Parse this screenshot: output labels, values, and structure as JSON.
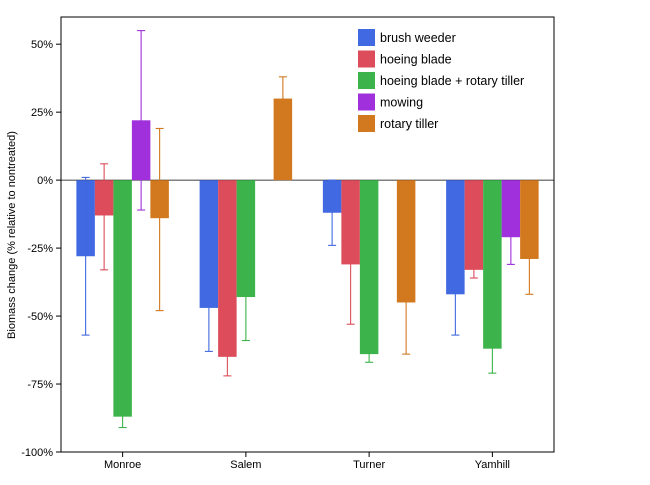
{
  "chart_data": {
    "type": "bar",
    "title": "",
    "xlabel": "",
    "ylabel": "Biomass change (% relative to nontreated)",
    "ylim": [
      -100,
      60
    ],
    "yticks": [
      -100,
      -75,
      -50,
      -25,
      0,
      25,
      50
    ],
    "ytick_labels": [
      "-100%",
      "-75%",
      "-50%",
      "-25%",
      "0%",
      "25%",
      "50%"
    ],
    "categories": [
      "Monroe",
      "Salem",
      "Turner",
      "Yamhill"
    ],
    "grid": false,
    "legend_position": "top-right",
    "series": [
      {
        "name": "brush weeder",
        "color": "#4169e1",
        "values": [
          -28,
          -47,
          -12,
          -42
        ],
        "err_low": [
          -57,
          -63,
          -24,
          -57
        ],
        "err_high": [
          1,
          -32,
          0,
          -28
        ]
      },
      {
        "name": "hoeing blade",
        "color": "#dc4c5a",
        "values": [
          -13,
          -65,
          -31,
          -33
        ],
        "err_low": [
          -33,
          -72,
          -53,
          -36
        ],
        "err_high": [
          6,
          -58,
          -10,
          -32
        ]
      },
      {
        "name": "hoeing blade + rotary tiller",
        "color": "#3cb44b",
        "values": [
          -87,
          -43,
          -64,
          -62
        ],
        "err_low": [
          -91,
          -59,
          -67,
          -71
        ],
        "err_high": [
          -84,
          -28,
          -61,
          -54
        ]
      },
      {
        "name": "mowing",
        "color": "#a030dc",
        "values": [
          22,
          null,
          null,
          -21
        ],
        "err_low": [
          -11,
          null,
          null,
          -31
        ],
        "err_high": [
          55,
          null,
          null,
          -12
        ]
      },
      {
        "name": "rotary tiller",
        "color": "#d2781e",
        "values": [
          -14,
          30,
          -45,
          -29
        ],
        "err_low": [
          -48,
          22,
          -64,
          -42
        ],
        "err_high": [
          19,
          38,
          -27,
          -17
        ]
      }
    ]
  }
}
